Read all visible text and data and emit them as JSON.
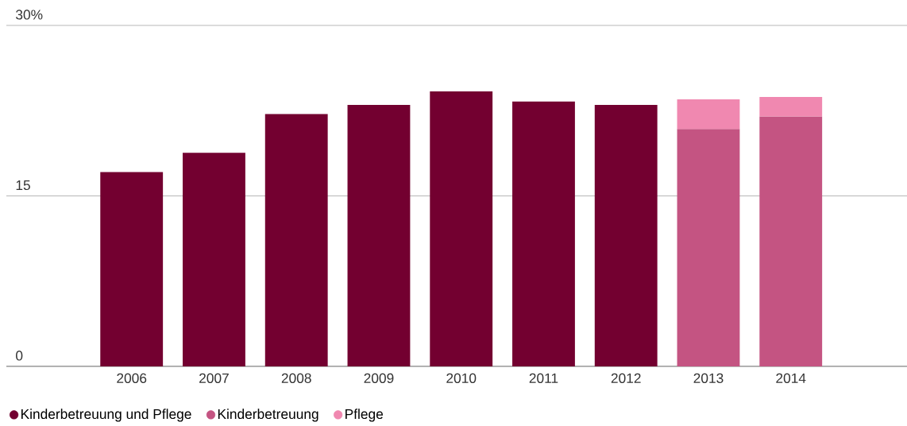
{
  "chart_data": {
    "type": "bar",
    "stacked": true,
    "categories": [
      "2006",
      "2007",
      "2008",
      "2009",
      "2010",
      "2011",
      "2012",
      "2013",
      "2014"
    ],
    "series": [
      {
        "name": "Kinderbetreuung und Pflege",
        "color": "#730030",
        "values": [
          17.1,
          18.8,
          22.2,
          23.0,
          24.2,
          23.3,
          23.0,
          null,
          null
        ]
      },
      {
        "name": "Kinderbetreuung",
        "color": "#c45482",
        "values": [
          null,
          null,
          null,
          null,
          null,
          null,
          null,
          20.9,
          22.0
        ]
      },
      {
        "name": "Pflege",
        "color": "#f088b0",
        "values": [
          null,
          null,
          null,
          null,
          null,
          null,
          null,
          2.6,
          1.7
        ]
      }
    ],
    "ylim": [
      0,
      30
    ],
    "yticks": [
      0,
      15,
      {
        "value": 30,
        "label": "30%"
      }
    ],
    "grid": "y",
    "legend": "bottom"
  }
}
